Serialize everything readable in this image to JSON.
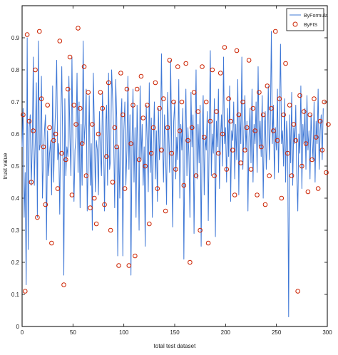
{
  "chart_data": {
    "type": "line",
    "xlabel": "total test dataset",
    "ylabel": "trust value",
    "xlim": [
      0,
      300
    ],
    "ylim": [
      0,
      1
    ],
    "xticks": [
      "0",
      "50",
      "100",
      "150",
      "200",
      "250",
      "300"
    ],
    "yticks": [
      "0",
      "0.1",
      "0.2",
      "0.3",
      "0.4",
      "0.5",
      "0.6",
      "0.7",
      "0.8",
      "0.9"
    ],
    "grid": false,
    "legend_position": "top-right",
    "series": [
      {
        "name": "ByFormula",
        "style": "line",
        "color": "#3f78d6",
        "step": 1,
        "values": [
          0.56,
          0.68,
          0.34,
          0.48,
          0.13,
          0.9,
          0.24,
          0.62,
          0.66,
          0.44,
          0.57,
          0.84,
          0.44,
          0.58,
          0.76,
          0.34,
          0.89,
          0.55,
          0.57,
          0.78,
          0.4,
          0.53,
          0.61,
          0.66,
          0.27,
          0.61,
          0.47,
          0.54,
          0.58,
          0.41,
          0.75,
          0.45,
          0.6,
          0.69,
          0.83,
          0.52,
          0.57,
          0.35,
          0.65,
          0.81,
          0.55,
          0.16,
          0.71,
          0.47,
          0.56,
          0.53,
          0.78,
          0.59,
          0.47,
          0.84,
          0.55,
          0.39,
          0.55,
          0.59,
          0.79,
          0.48,
          0.7,
          0.37,
          0.63,
          0.44,
          0.89,
          0.57,
          0.63,
          0.74,
          0.36,
          0.51,
          0.72,
          0.44,
          0.57,
          0.3,
          0.79,
          0.62,
          0.42,
          0.58,
          0.55,
          0.41,
          0.67,
          0.54,
          0.47,
          0.73,
          0.6,
          0.36,
          0.62,
          0.69,
          0.44,
          0.79,
          0.49,
          0.52,
          0.8,
          0.71,
          0.59,
          0.37,
          0.77,
          0.65,
          0.22,
          0.56,
          0.4,
          0.64,
          0.71,
          0.22,
          0.61,
          0.7,
          0.44,
          0.55,
          0.78,
          0.49,
          0.66,
          0.16,
          0.57,
          0.74,
          0.45,
          0.62,
          0.34,
          0.69,
          0.55,
          0.3,
          0.75,
          0.52,
          0.63,
          0.44,
          0.56,
          0.25,
          0.69,
          0.58,
          0.42,
          0.76,
          0.48,
          0.65,
          0.34,
          0.57,
          0.7,
          0.46,
          0.61,
          0.39,
          0.68,
          0.52,
          0.6,
          0.85,
          0.58,
          0.45,
          0.66,
          0.54,
          0.38,
          0.73,
          0.6,
          0.48,
          0.83,
          0.56,
          0.31,
          0.64,
          0.7,
          0.46,
          0.59,
          0.52,
          0.77,
          0.4,
          0.63,
          0.55,
          0.68,
          0.21,
          0.58,
          0.74,
          0.47,
          0.62,
          0.53,
          0.34,
          0.73,
          0.56,
          0.66,
          0.29,
          0.57,
          0.8,
          0.46,
          0.63,
          0.51,
          0.69,
          0.25,
          0.6,
          0.72,
          0.41,
          0.59,
          0.55,
          0.67,
          0.33,
          0.62,
          0.86,
          0.47,
          0.6,
          0.54,
          0.71,
          0.28,
          0.64,
          0.56,
          0.74,
          0.43,
          0.59,
          0.66,
          0.5,
          0.84,
          0.57,
          0.62,
          0.45,
          0.68,
          0.53,
          0.75,
          0.39,
          0.61,
          0.58,
          0.7,
          0.46,
          0.63,
          0.52,
          0.77,
          0.41,
          0.66,
          0.57,
          0.84,
          0.49,
          0.61,
          0.72,
          0.55,
          0.64,
          0.36,
          0.59,
          0.68,
          0.51,
          0.74,
          0.45,
          0.63,
          0.57,
          0.7,
          0.48,
          0.81,
          0.56,
          0.64,
          0.53,
          0.72,
          0.4,
          0.61,
          0.67,
          0.49,
          0.58,
          0.75,
          0.52,
          0.63,
          0.92,
          0.57,
          0.69,
          0.46,
          0.62,
          0.55,
          0.74,
          0.48,
          0.65,
          0.88,
          0.57,
          0.61,
          0.5,
          0.71,
          0.45,
          0.64,
          0.58,
          0.03,
          0.66,
          0.51,
          0.73,
          0.44,
          0.62,
          0.57,
          0.69,
          0.47,
          0.36,
          0.6,
          0.54,
          0.75,
          0.43,
          0.63,
          0.57,
          0.68,
          0.49,
          0.72,
          0.55,
          0.61,
          0.46,
          0.66,
          0.58,
          0.52,
          0.7,
          0.45,
          0.64,
          0.57,
          0.74,
          0.49,
          0.61,
          0.66,
          0.52,
          0.68
        ]
      },
      {
        "name": "ByFIS",
        "style": "markers",
        "color": "#cc2200",
        "step": 2,
        "values": [
          0.66,
          0.11,
          0.91,
          0.64,
          0.45,
          0.61,
          0.8,
          0.34,
          0.92,
          0.71,
          0.56,
          0.38,
          0.69,
          0.62,
          0.26,
          0.58,
          0.6,
          0.43,
          0.89,
          0.54,
          0.13,
          0.52,
          0.74,
          0.84,
          0.41,
          0.69,
          0.63,
          0.93,
          0.68,
          0.57,
          0.81,
          0.47,
          0.73,
          0.37,
          0.63,
          0.4,
          0.32,
          0.6,
          0.73,
          0.68,
          0.38,
          0.53,
          0.76,
          0.3,
          0.45,
          0.62,
          0.56,
          0.19,
          0.79,
          0.66,
          0.43,
          0.74,
          0.19,
          0.57,
          0.69,
          0.22,
          0.74,
          0.52,
          0.78,
          0.65,
          0.5,
          0.69,
          0.32,
          0.54,
          0.62,
          0.76,
          0.43,
          0.68,
          0.55,
          0.71,
          0.36,
          0.62,
          0.83,
          0.54,
          0.7,
          0.49,
          0.81,
          0.61,
          0.7,
          0.44,
          0.82,
          0.58,
          0.2,
          0.62,
          0.73,
          0.47,
          0.67,
          0.3,
          0.81,
          0.59,
          0.7,
          0.26,
          0.64,
          0.8,
          0.47,
          0.67,
          0.54,
          0.79,
          0.6,
          0.87,
          0.49,
          0.71,
          0.64,
          0.55,
          0.41,
          0.86,
          0.66,
          0.51,
          0.7,
          0.55,
          0.62,
          0.83,
          0.49,
          0.68,
          0.61,
          0.41,
          0.73,
          0.56,
          0.66,
          0.38,
          0.75,
          0.47,
          0.68,
          0.61,
          0.92,
          0.58,
          0.71,
          0.4,
          0.66,
          0.82,
          0.54,
          0.69,
          0.47,
          0.63,
          0.58,
          0.11,
          0.72,
          0.5,
          0.67,
          0.57,
          0.42,
          0.66,
          0.52,
          0.71,
          0.59,
          0.43,
          0.64,
          0.55,
          0.7,
          0.48,
          0.63
        ]
      }
    ]
  }
}
